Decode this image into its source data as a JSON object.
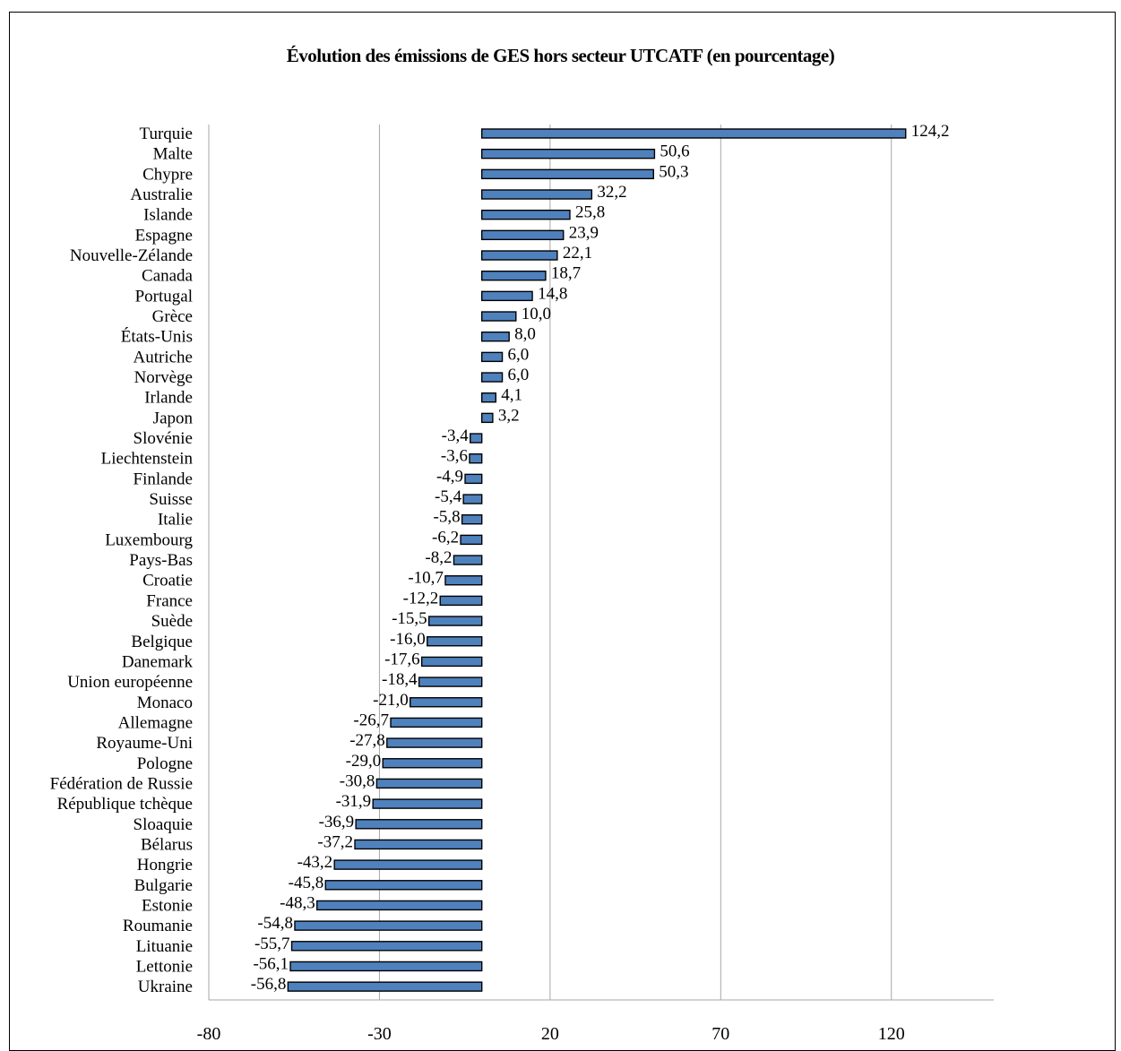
{
  "chart_data": {
    "type": "bar",
    "orientation": "horizontal",
    "title": "Évolution des émissions de GES hors secteur UTCATF (en pourcentage)",
    "xlabel": "",
    "ylabel": "",
    "xlim": [
      -80,
      150
    ],
    "xticks": [
      -80,
      -30,
      20,
      70,
      120
    ],
    "xtick_labels": [
      "-80",
      "-30",
      "20",
      "70",
      "120"
    ],
    "grid": true,
    "bar_color": "#4f81bd",
    "categories": [
      "Turquie",
      "Malte",
      "Chypre",
      "Australie",
      "Islande",
      "Espagne",
      "Nouvelle-Zélande",
      "Canada",
      "Portugal",
      "Grèce",
      "États-Unis",
      "Autriche",
      "Norvège",
      "Irlande",
      "Japon",
      "Slovénie",
      "Liechtenstein",
      "Finlande",
      "Suisse",
      "Italie",
      "Luxembourg",
      "Pays-Bas",
      "Croatie",
      "France",
      "Suède",
      "Belgique",
      "Danemark",
      "Union européenne",
      "Monaco",
      "Allemagne",
      "Royaume-Uni",
      "Pologne",
      "Fédération de Russie",
      "République tchèque",
      "Sloaquie",
      "Bélarus",
      "Hongrie",
      "Bulgarie",
      "Estonie",
      "Roumanie",
      "Lituanie",
      "Lettonie",
      "Ukraine"
    ],
    "values": [
      124.2,
      50.6,
      50.3,
      32.2,
      25.8,
      23.9,
      22.1,
      18.7,
      14.8,
      10.0,
      8.0,
      6.0,
      6.0,
      4.1,
      3.2,
      -3.4,
      -3.6,
      -4.9,
      -5.4,
      -5.8,
      -6.2,
      -8.2,
      -10.7,
      -12.2,
      -15.5,
      -16.0,
      -17.6,
      -18.4,
      -21.0,
      -26.7,
      -27.8,
      -29.0,
      -30.8,
      -31.9,
      -36.9,
      -37.2,
      -43.2,
      -45.8,
      -48.3,
      -54.8,
      -55.7,
      -56.1,
      -56.8
    ],
    "value_labels": [
      "124,2",
      "50,6",
      "50,3",
      "32,2",
      "25,8",
      "23,9",
      "22,1",
      "18,7",
      "14,8",
      "10,0",
      "8,0",
      "6,0",
      "6,0",
      "4,1",
      "3,2",
      "-3,4",
      "-3,6",
      "-4,9",
      "-5,4",
      "-5,8",
      "-6,2",
      "-8,2",
      "-10,7",
      "-12,2",
      "-15,5",
      "-16,0",
      "-17,6",
      "-18,4",
      "-21,0",
      "-26,7",
      "-27,8",
      "-29,0",
      "-30,8",
      "-31,9",
      "-36,9",
      "-37,2",
      "-43,2",
      "-45,8",
      "-48,3",
      "-54,8",
      "-55,7",
      "-56,1",
      "-56,8"
    ]
  }
}
